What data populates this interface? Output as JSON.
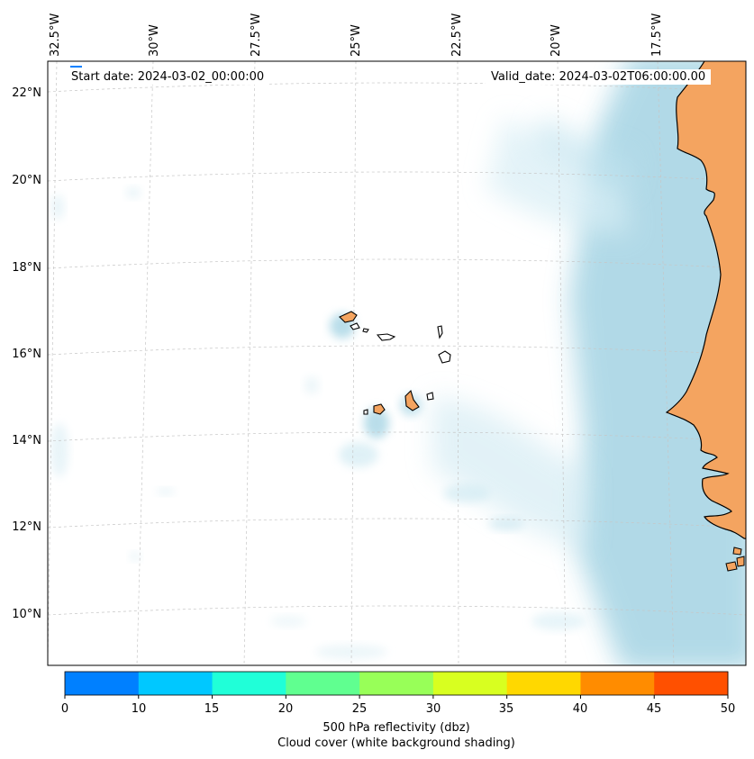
{
  "map": {
    "start_date": "Start date: 2024-03-02_00:00:00",
    "valid_date": "Valid_date: 2024-03-02T06:00:00.00",
    "lon_labels": [
      "32.5°W",
      "30°W",
      "27.5°W",
      "25°W",
      "22.5°W",
      "20°W",
      "17.5°W"
    ],
    "lat_labels": [
      "22°N",
      "20°N",
      "18°N",
      "16°N",
      "14°N",
      "12°N",
      "10°N"
    ],
    "colors": {
      "land": "#f4a460",
      "cloud": "#add8e6",
      "coastline": "#000000",
      "gridline": "#c0c0c0"
    },
    "features": [
      "cape-verde-islands",
      "west-african-coast",
      "cloud-cover-field"
    ]
  },
  "colorbar": {
    "ticks": [
      "0",
      "10",
      "15",
      "20",
      "25",
      "30",
      "35",
      "40",
      "45",
      "50"
    ],
    "colors": [
      "#0080ff",
      "#00c8ff",
      "#20ffd8",
      "#60ff90",
      "#98ff58",
      "#d8ff20",
      "#ffd800",
      "#ff8c00",
      "#ff5000"
    ],
    "label_line1": "500 hPa reflectivity (dbz)",
    "label_line2": "Cloud cover (white background shading)"
  }
}
